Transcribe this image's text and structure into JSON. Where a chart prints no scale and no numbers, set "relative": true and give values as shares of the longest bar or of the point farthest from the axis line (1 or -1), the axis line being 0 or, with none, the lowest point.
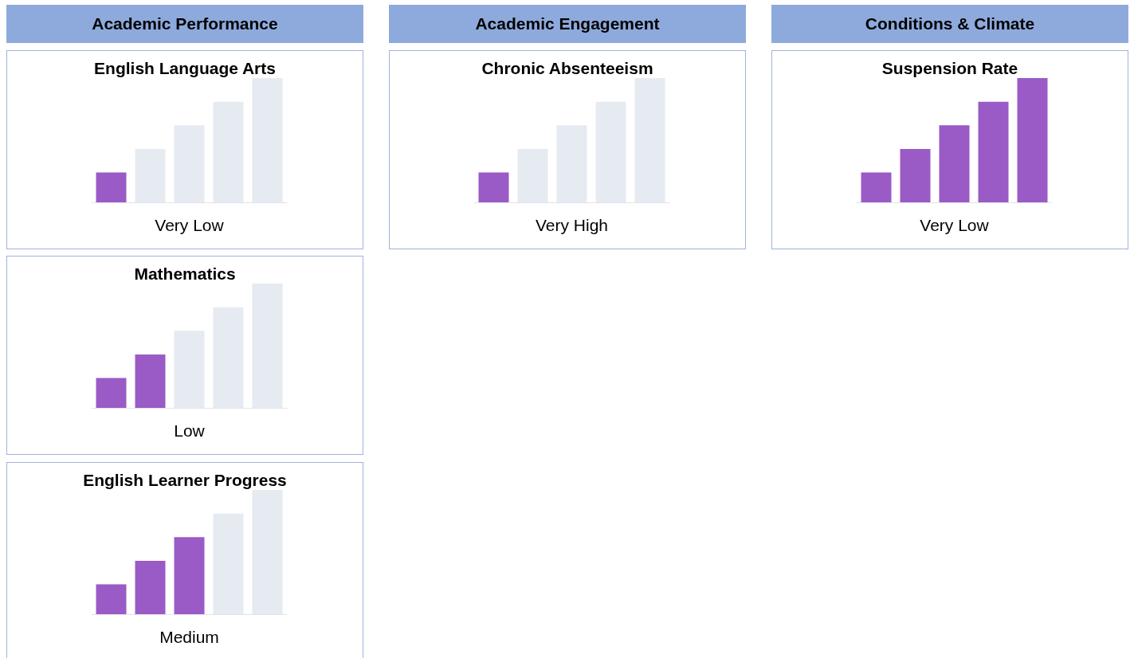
{
  "chart_data": [
    {
      "type": "bar",
      "title": "English Language Arts",
      "annotations": [
        "Academic Performance"
      ],
      "xlabel": "Very Low",
      "relative": true,
      "categories": [
        null,
        null,
        null,
        null,
        null
      ],
      "values": [
        0.24,
        0.43,
        0.62,
        0.81,
        1
      ],
      "colors": [
        "#9a5bc6",
        "#e6ebf2",
        "#e6ebf2",
        "#e6ebf2",
        "#e6ebf2"
      ]
    },
    {
      "type": "bar",
      "title": "Mathematics",
      "xlabel": "Low",
      "relative": true,
      "categories": [
        null,
        null,
        null,
        null,
        null
      ],
      "values": [
        0.24,
        0.43,
        0.62,
        0.81,
        1
      ],
      "colors": [
        "#9a5bc6",
        "#9a5bc6",
        "#e6ebf2",
        "#e6ebf2",
        "#e6ebf2"
      ]
    },
    {
      "type": "bar",
      "title": "English Learner Progress",
      "xlabel": "Medium",
      "relative": true,
      "categories": [
        null,
        null,
        null,
        null,
        null
      ],
      "values": [
        0.24,
        0.43,
        0.62,
        0.81,
        1
      ],
      "colors": [
        "#9a5bc6",
        "#9a5bc6",
        "#9a5bc6",
        "#e6ebf2",
        "#e6ebf2"
      ]
    },
    {
      "type": "bar",
      "title": "Chronic Absenteeism",
      "annotations": [
        "Academic Engagement"
      ],
      "xlabel": "Very High",
      "relative": true,
      "categories": [
        null,
        null,
        null,
        null,
        null
      ],
      "values": [
        0.24,
        0.43,
        0.62,
        0.81,
        1
      ],
      "colors": [
        "#9a5bc6",
        "#e6ebf2",
        "#e6ebf2",
        "#e6ebf2",
        "#e6ebf2"
      ]
    },
    {
      "type": "bar",
      "title": "Suspension Rate",
      "annotations": [
        "Conditions & Climate"
      ],
      "xlabel": "Very Low",
      "relative": true,
      "categories": [
        null,
        null,
        null,
        null,
        null
      ],
      "values": [
        0.24,
        0.43,
        0.62,
        0.81,
        1
      ],
      "colors": [
        "#9a5bc6",
        "#9a5bc6",
        "#9a5bc6",
        "#9a5bc6",
        "#9a5bc6"
      ]
    }
  ]
}
